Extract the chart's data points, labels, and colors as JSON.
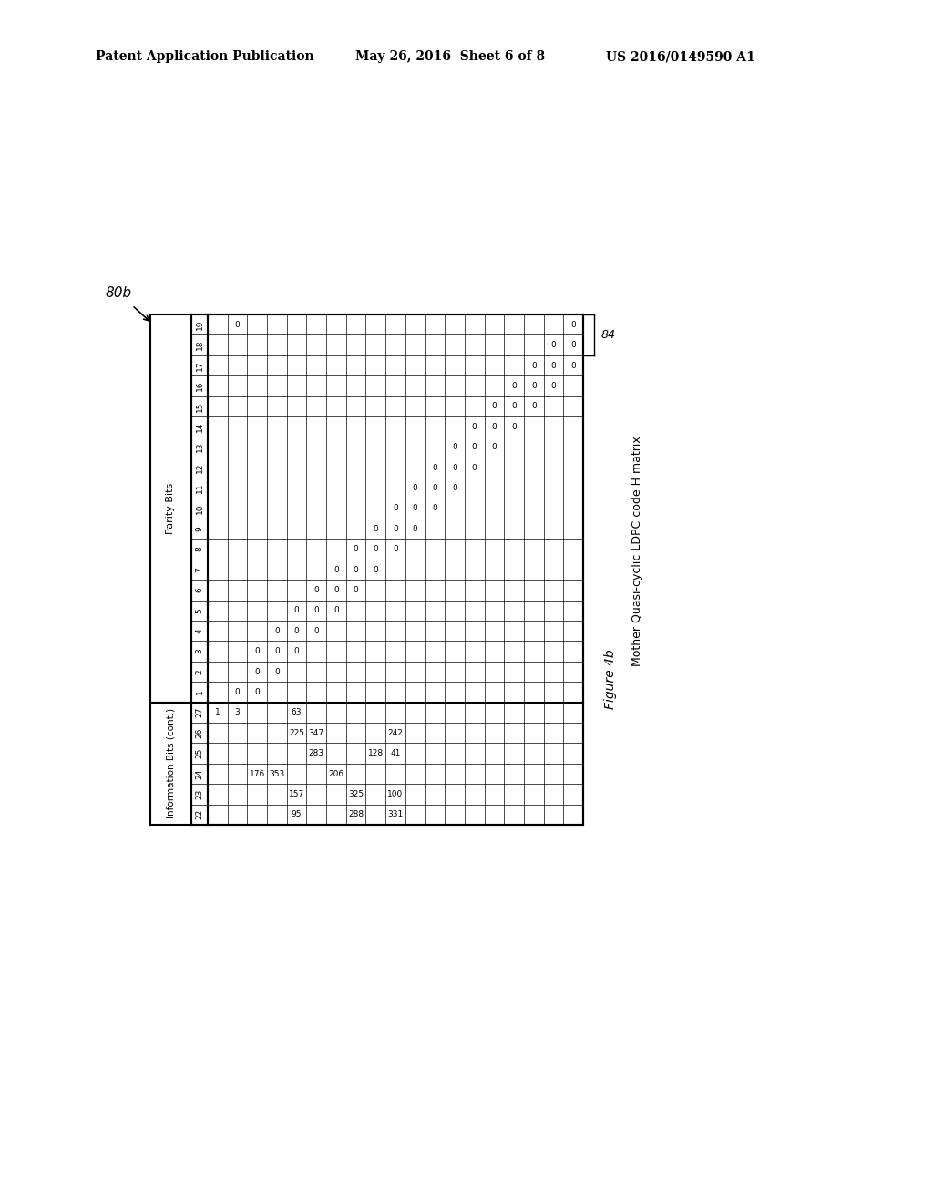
{
  "header_left": "Patent Application Publication",
  "header_mid": "May 26, 2016  Sheet 6 of 8",
  "header_right": "US 2016/0149590 A1",
  "label_80b": "80b",
  "label_84": "84",
  "figure_caption": "Figure 4b",
  "matrix_title": "Mother Quasi-cyclic LDPC code H matrix",
  "info_cols_label": "Information Bits (cont.)",
  "parity_cols_label": "Parity Bits",
  "col_order": [
    "19",
    "18",
    "17",
    "16",
    "15",
    "14",
    "13",
    "12",
    "11",
    "10",
    "9",
    "8",
    "7",
    "6",
    "5",
    "4",
    "3",
    "2",
    "1",
    "27",
    "26",
    "25",
    "24",
    "23",
    "22"
  ],
  "n_parity_rows": 19,
  "n_info_rows": 6,
  "row_data_cols": [
    "19",
    "18",
    "17",
    "16",
    "15",
    "14",
    "13",
    "12",
    "11",
    "10",
    "9",
    "8",
    "7",
    "6",
    "5",
    "4",
    "3",
    "2",
    "1",
    "27",
    "26",
    "25",
    "24",
    "23",
    "22"
  ],
  "matrix": {
    "col0": [
      "",
      "",
      "",
      "",
      "",
      "",
      "",
      "",
      "",
      "",
      "",
      "",
      "",
      "",
      "",
      "",
      "",
      "",
      "",
      "1",
      "",
      "",
      "",
      "",
      ""
    ],
    "col1": [
      "0",
      "",
      "",
      "",
      "",
      "",
      "",
      "",
      "",
      "",
      "",
      "",
      "",
      "",
      "",
      "",
      "",
      "",
      "0",
      "3",
      "",
      "",
      "",
      "",
      ""
    ],
    "col2": [
      "",
      "",
      "",
      "",
      "",
      "",
      "",
      "",
      "",
      "",
      "",
      "",
      "",
      "",
      "",
      "",
      "0",
      "0",
      "0",
      "",
      "",
      "",
      "176",
      "",
      ""
    ],
    "col3": [
      "",
      "",
      "",
      "",
      "",
      "",
      "",
      "",
      "",
      "",
      "",
      "",
      "",
      "",
      "",
      "0",
      "0",
      "0",
      "",
      "",
      "",
      "",
      "353",
      "",
      ""
    ],
    "col4": [
      "",
      "",
      "",
      "",
      "",
      "",
      "",
      "",
      "",
      "",
      "",
      "",
      "",
      "",
      "0",
      "0",
      "0",
      "",
      "",
      "63",
      "225",
      "",
      "",
      "157",
      "95"
    ],
    "col5": [
      "",
      "",
      "",
      "",
      "",
      "",
      "",
      "",
      "",
      "",
      "",
      "",
      "",
      "0",
      "0",
      "0",
      "",
      "",
      "",
      "",
      "347",
      "283",
      "",
      "",
      ""
    ],
    "col6": [
      "",
      "",
      "",
      "",
      "",
      "",
      "",
      "",
      "",
      "",
      "",
      "",
      "0",
      "0",
      "0",
      "",
      "",
      "",
      "",
      "",
      "",
      "",
      "206",
      "",
      ""
    ],
    "col7": [
      "",
      "",
      "",
      "",
      "",
      "",
      "",
      "",
      "",
      "",
      "",
      "0",
      "0",
      "0",
      "",
      "",
      "",
      "",
      "",
      "",
      "",
      "",
      "",
      "325",
      "288"
    ],
    "col8": [
      "",
      "",
      "",
      "",
      "",
      "",
      "",
      "",
      "",
      "",
      "0",
      "0",
      "0",
      "",
      "",
      "",
      "",
      "",
      "",
      "",
      "",
      "128",
      "",
      "",
      ""
    ],
    "col9": [
      "",
      "",
      "",
      "",
      "",
      "",
      "",
      "",
      "",
      "0",
      "0",
      "0",
      "",
      "",
      "",
      "",
      "",
      "",
      "",
      "",
      "242",
      "41",
      "",
      "100",
      "331"
    ],
    "col10": [
      "",
      "",
      "",
      "",
      "",
      "",
      "",
      "",
      "0",
      "0",
      "0",
      "",
      "",
      "",
      "",
      "",
      "",
      "",
      "",
      "",
      "",
      "",
      "",
      "",
      ""
    ],
    "col11": [
      "",
      "",
      "",
      "",
      "",
      "",
      "",
      "0",
      "0",
      "0",
      "",
      "",
      "",
      "",
      "",
      "",
      "",
      "",
      "",
      "",
      "",
      "",
      "",
      "",
      ""
    ],
    "col12": [
      "",
      "",
      "",
      "",
      "",
      "",
      "0",
      "0",
      "0",
      "",
      "",
      "",
      "",
      "",
      "",
      "",
      "",
      "",
      "",
      "",
      "",
      "",
      "",
      "",
      ""
    ],
    "col13": [
      "",
      "",
      "",
      "",
      "",
      "0",
      "0",
      "0",
      "",
      "",
      "",
      "",
      "",
      "",
      "",
      "",
      "",
      "",
      "",
      "",
      "",
      "",
      "",
      "",
      ""
    ],
    "col14": [
      "",
      "",
      "",
      "",
      "0",
      "0",
      "0",
      "",
      "",
      "",
      "",
      "",
      "",
      "",
      "",
      "",
      "",
      "",
      "",
      "",
      "",
      "",
      "",
      "",
      ""
    ],
    "col15": [
      "",
      "",
      "",
      "0",
      "0",
      "0",
      "",
      "",
      "",
      "",
      "",
      "",
      "",
      "",
      "",
      "",
      "",
      "",
      "",
      "",
      "",
      "",
      "",
      "",
      ""
    ],
    "col16": [
      "",
      "",
      "0",
      "0",
      "0",
      "",
      "",
      "",
      "",
      "",
      "",
      "",
      "",
      "",
      "",
      "",
      "",
      "",
      "",
      "",
      "",
      "",
      "",
      "",
      ""
    ],
    "col17": [
      "",
      "0",
      "0",
      "0",
      "",
      "",
      "",
      "",
      "",
      "",
      "",
      "",
      "",
      "",
      "",
      "",
      "",
      "",
      "",
      "",
      "",
      "",
      "",
      "",
      ""
    ],
    "col18": [
      "0",
      "0",
      "0",
      "",
      "",
      "",
      "",
      "",
      "",
      "",
      "",
      "",
      "",
      "",
      "",
      "",
      "",
      "",
      "",
      "",
      "",
      "",
      "",
      "",
      ""
    ]
  },
  "bg_color": "#ffffff",
  "text_color": "#000000"
}
